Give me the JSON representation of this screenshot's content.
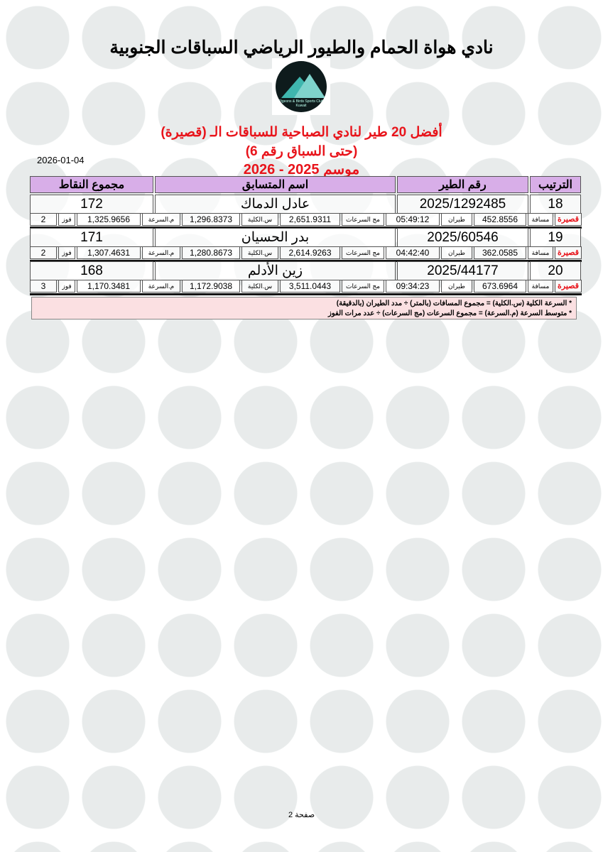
{
  "header": {
    "club_title": "نادي هواة الحمام والطيور الرياضي السباقات الجنوبية",
    "logo_text": "Pigeons & Birds Sports Club Kuwait",
    "subtitle1": "أفضل 20 طير لنادي الصباحية للسباقات الـ (قصيرة)",
    "subtitle2": "(حتى السباق رقم 6)",
    "subtitle3": "موسم 2025 - 2026",
    "date": "2026-01-04"
  },
  "table": {
    "columns": {
      "rank": "الترتيب",
      "bird": "رقم الطير",
      "name": "اسم المتسابق",
      "points": "مجموع النقاط"
    },
    "labels": {
      "category": "قصيرة",
      "distance": "مسافة",
      "flight": "طيران",
      "speed_sum": "مج السرعات",
      "total_speed": "س.الكلية",
      "avg_speed": "م.السرعة",
      "wins": "فوز"
    },
    "rows": [
      {
        "rank": "18",
        "bird": "2025/1292485",
        "name": "عادل الدماك",
        "points": "172",
        "distance": "452.8556",
        "flight": "05:49:12",
        "speed_sum": "2,651.9311",
        "total_speed": "1,296.8373",
        "avg_speed": "1,325.9656",
        "wins": "2"
      },
      {
        "rank": "19",
        "bird": "2025/60546",
        "name": "بدر الحسيان",
        "points": "171",
        "distance": "362.0585",
        "flight": "04:42:40",
        "speed_sum": "2,614.9263",
        "total_speed": "1,280.8673",
        "avg_speed": "1,307.4631",
        "wins": "2"
      },
      {
        "rank": "20",
        "bird": "2025/44177",
        "name": "زين الأدلم",
        "points": "168",
        "distance": "673.6964",
        "flight": "09:34:23",
        "speed_sum": "3,511.0443",
        "total_speed": "1,172.9038",
        "avg_speed": "1,170.3481",
        "wins": "3"
      }
    ]
  },
  "notes": [
    "* السرعة الكلية (س.الكلية) = مجموع المسافات (بالمتر) ÷ مدد الطيران (بالدقيقة)",
    "* متوسط السرعة (م.السرعة) = مجموع السرعات (مج السرعات) ÷ عدد مرات الفوز"
  ],
  "footer": {
    "page": "صفحة 2"
  },
  "colors": {
    "header_bg": "#d8aee8",
    "accent_red": "#e8141b",
    "notes_bg": "#fbe0e2"
  }
}
